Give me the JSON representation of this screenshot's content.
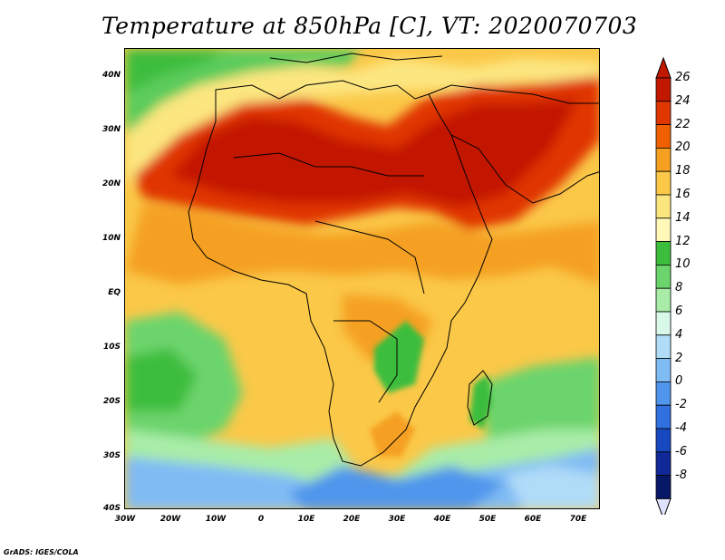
{
  "title": "Temperature at 850hPa [C], VT: 2020070703",
  "credit": "GrADS: IGES/COLA",
  "map": {
    "lon_range": [
      -30,
      75
    ],
    "lat_range": [
      -40,
      45
    ],
    "lat_ticks": [
      "40N",
      "30N",
      "20N",
      "10N",
      "EQ",
      "10S",
      "20S",
      "30S",
      "40S"
    ],
    "lon_ticks": [
      "30W",
      "20W",
      "10W",
      "0",
      "10E",
      "20E",
      "30E",
      "40E",
      "50E",
      "60E",
      "70E"
    ]
  },
  "colorbar": {
    "labels": [
      "26",
      "24",
      "22",
      "20",
      "18",
      "16",
      "14",
      "12",
      "10",
      "8",
      "6",
      "4",
      "2",
      "0",
      "-2",
      "-4",
      "-6",
      "-8"
    ],
    "colors": [
      "#c21800",
      "#e03600",
      "#f06000",
      "#f5a020",
      "#fbc848",
      "#fce680",
      "#fff8b8",
      "#3cbd3c",
      "#6cd46c",
      "#a8eca8",
      "#d8f8e8",
      "#b0dcf8",
      "#80bcf4",
      "#5096ec",
      "#3070e0",
      "#1848c0",
      "#102898",
      "#081868"
    ],
    "top_arrow_color": "#c21800",
    "bottom_arrow_color": "#e0e0ff"
  }
}
